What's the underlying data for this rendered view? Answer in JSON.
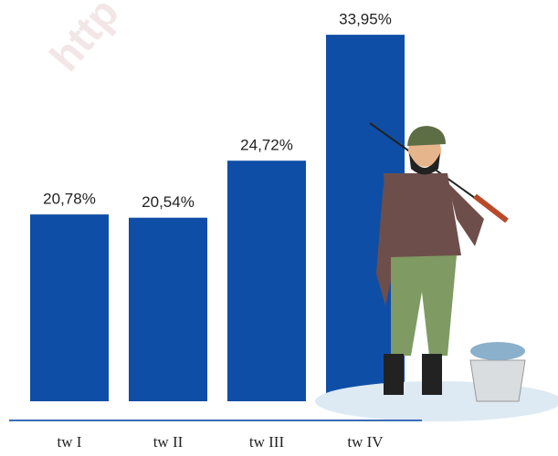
{
  "watermark": "http",
  "chart_data": {
    "type": "bar",
    "categories": [
      "tw I",
      "tw II",
      "tw III",
      "tw IV"
    ],
    "values": [
      20.78,
      20.54,
      24.72,
      33.95
    ],
    "value_labels": [
      "20,78%",
      "20,54%",
      "24,72%",
      "33,95%"
    ],
    "color": "#0f4ea6"
  }
}
